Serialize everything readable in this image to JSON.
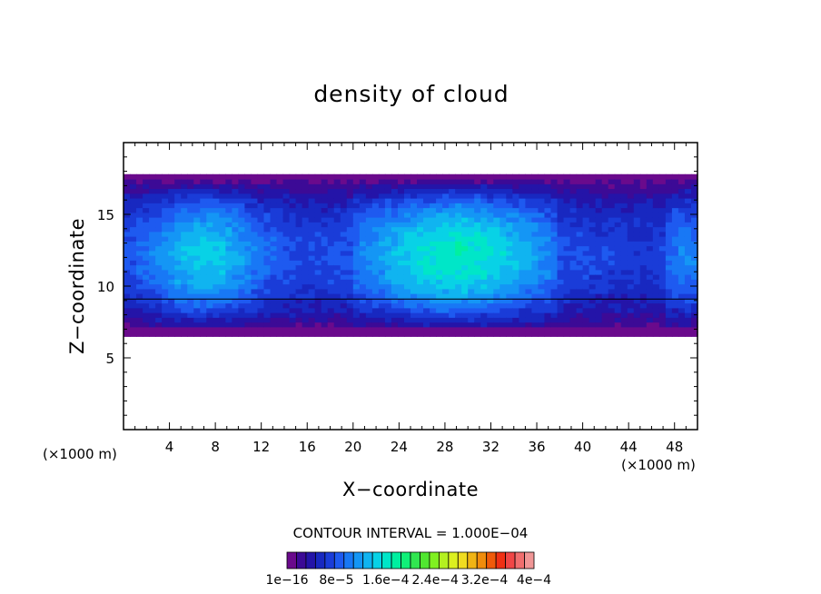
{
  "chart_data": {
    "type": "heatmap",
    "title": "density of cloud",
    "xlabel": "X−coordinate",
    "ylabel": "Z−coordinate",
    "x_unit": "(×1000 m)",
    "y_unit": "(×1000 m)",
    "xlim": [
      0,
      50
    ],
    "ylim": [
      0,
      20
    ],
    "x_ticks": [
      4,
      8,
      12,
      16,
      20,
      24,
      28,
      32,
      36,
      40,
      44,
      48
    ],
    "y_ticks": [
      5,
      10,
      15
    ],
    "cloud_layer": {
      "base_z": 6.5,
      "top_z": 17.8
    },
    "contour_interval_label": "CONTOUR INTERVAL = 1.000E−04",
    "colorbar": {
      "tick_labels": [
        "1e−16",
        "8e−5",
        "1.6e−4",
        "2.4e−4",
        "3.2e−4",
        "4e−4"
      ],
      "colors": [
        "#6a0a8c",
        "#3c0a96",
        "#2414a8",
        "#1828c0",
        "#1a3cd8",
        "#1e5af0",
        "#1878f5",
        "#1496f5",
        "#10b4f0",
        "#08d2e6",
        "#00e6c8",
        "#00f0a0",
        "#10f078",
        "#30e650",
        "#50e630",
        "#80f020",
        "#b4f020",
        "#dcf020",
        "#f0dc20",
        "#f0b414",
        "#f08c0c",
        "#f05a0a",
        "#f03014",
        "#f04646",
        "#f06e6e",
        "#f09696"
      ]
    }
  }
}
